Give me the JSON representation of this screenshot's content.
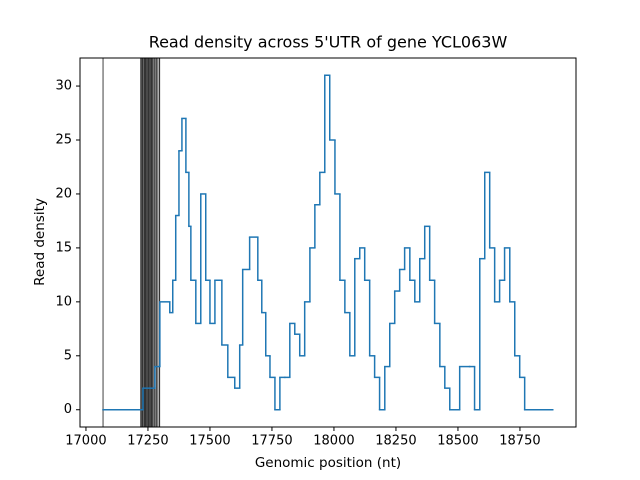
{
  "chart_data": {
    "type": "step",
    "title": "Read density across 5'UTR of gene YCL063W",
    "x_label": "Genomic position (nt)",
    "y_label": "Read density",
    "xlim": [
      16976,
      18976
    ],
    "ylim": [
      -1.6,
      32.6
    ],
    "xticks": [
      17000,
      17250,
      17500,
      17750,
      18000,
      18250,
      18500,
      18750
    ],
    "yticks": [
      0,
      5,
      10,
      15,
      20,
      25,
      30
    ],
    "grid": false,
    "vlines": [
      {
        "x": 17069,
        "color": "#808080"
      },
      {
        "x": 17222,
        "color": "#333333"
      },
      {
        "x": 17228,
        "color": "#333333"
      },
      {
        "x": 17235,
        "color": "#333333"
      },
      {
        "x": 17240,
        "color": "#333333"
      },
      {
        "x": 17246,
        "color": "#333333"
      },
      {
        "x": 17252,
        "color": "#333333"
      },
      {
        "x": 17258,
        "color": "#333333"
      },
      {
        "x": 17264,
        "color": "#333333"
      },
      {
        "x": 17270,
        "color": "#333333"
      },
      {
        "x": 17278,
        "color": "#333333"
      },
      {
        "x": 17286,
        "color": "#333333"
      },
      {
        "x": 17296,
        "color": "#333333"
      }
    ],
    "series": [
      {
        "color": "#1f77b4",
        "x": [
          17069,
          17230,
          17278,
          17298,
          17338,
          17350,
          17362,
          17375,
          17387,
          17403,
          17415,
          17423,
          17443,
          17463,
          17483,
          17500,
          17520,
          17548,
          17572,
          17600,
          17620,
          17632,
          17660,
          17693,
          17709,
          17725,
          17742,
          17762,
          17782,
          17802,
          17822,
          17842,
          17862,
          17882,
          17903,
          17923,
          17943,
          17963,
          17983,
          18004,
          18024,
          18044,
          18064,
          18084,
          18104,
          18124,
          18144,
          18164,
          18184,
          18205,
          18225,
          18245,
          18265,
          18285,
          18306,
          18326,
          18346,
          18366,
          18386,
          18406,
          18427,
          18447,
          18467,
          18487,
          18507,
          18547,
          18567,
          18588,
          18608,
          18628,
          18648,
          18668,
          18688,
          18709,
          18729,
          18749,
          18769,
          18789,
          18809,
          18882
        ],
        "values": [
          0,
          2,
          4,
          10,
          9,
          12,
          18,
          24,
          27,
          22,
          17,
          12,
          8,
          20,
          12,
          8,
          12,
          6,
          3,
          2,
          6,
          13,
          16,
          12,
          9,
          5,
          3,
          0,
          3,
          3,
          8,
          7,
          5,
          10,
          15,
          19,
          22,
          31,
          25,
          20,
          12,
          9,
          5,
          14,
          15,
          12,
          5,
          3,
          0,
          4,
          8,
          11,
          13,
          15,
          12,
          10,
          14,
          17,
          12,
          8,
          4,
          2,
          0,
          0,
          4,
          4,
          0,
          14,
          22,
          15,
          10,
          12,
          15,
          10,
          5,
          3,
          0,
          0,
          0,
          0
        ]
      }
    ]
  }
}
